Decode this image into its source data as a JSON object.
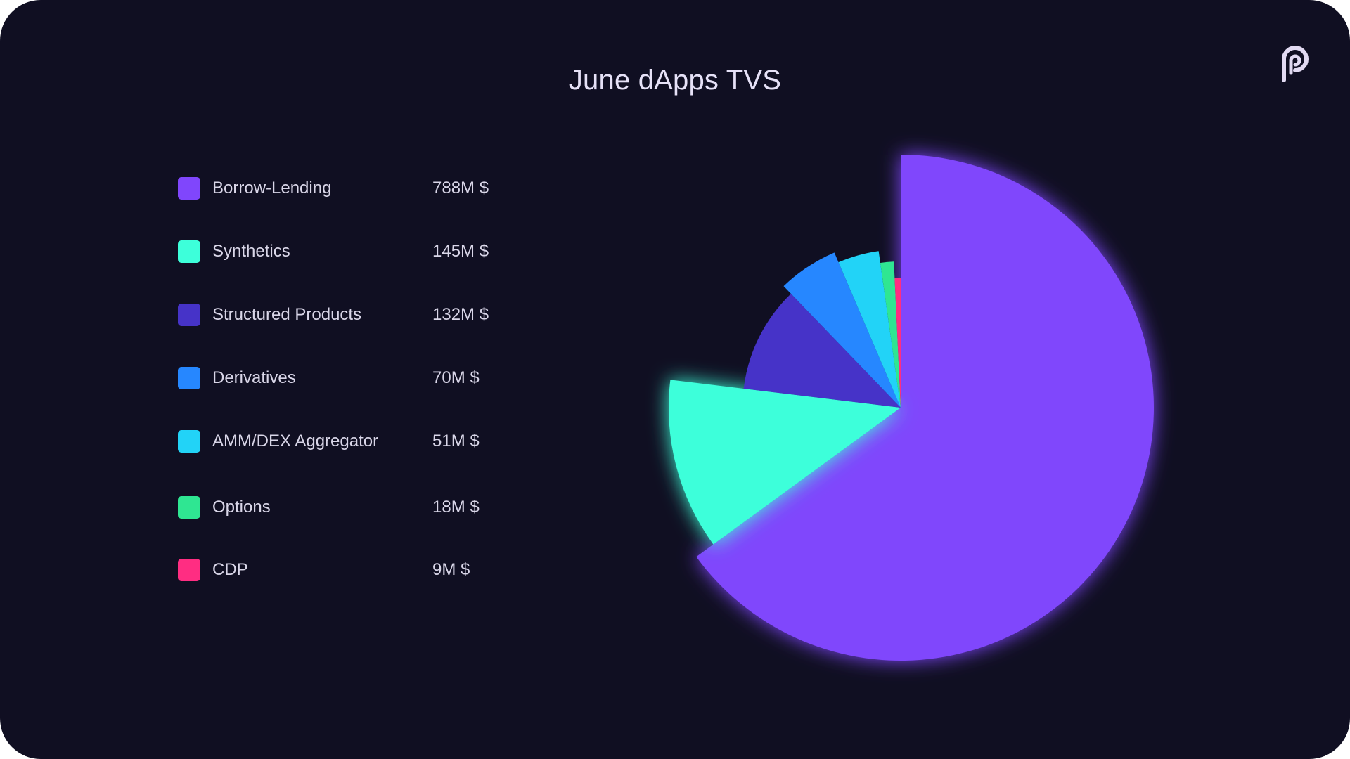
{
  "chart_data": {
    "type": "pie",
    "title": "June dApps TVS",
    "unit_suffix": "M $",
    "legend_position": "left",
    "slices": [
      {
        "label": "Borrow-Lending",
        "value": 788,
        "display": "788M $",
        "color": "#8046fc"
      },
      {
        "label": "Synthetics",
        "value": 145,
        "display": "145M $",
        "color": "#3dffda"
      },
      {
        "label": "Structured Products",
        "value": 132,
        "display": "132M $",
        "color": "#4633c8"
      },
      {
        "label": "Derivatives",
        "value": 70,
        "display": "70M $",
        "color": "#2687ff"
      },
      {
        "label": "AMM/DEX Aggregator",
        "value": 51,
        "display": "51M $",
        "color": "#22d3f7"
      },
      {
        "label": "Options",
        "value": 18,
        "display": "18M $",
        "color": "#2fe692"
      },
      {
        "label": "CDP",
        "value": 9,
        "display": "9M $",
        "color": "#ff2d82"
      }
    ]
  },
  "brand": {
    "background": "#100f22",
    "logo_icon": "pyth-logo-icon",
    "logo_color": "#e2daf2"
  }
}
